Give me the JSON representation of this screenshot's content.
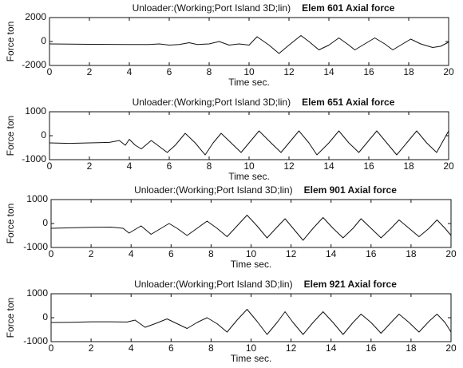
{
  "chart_data": [
    {
      "type": "line",
      "title": "Unloader:(Working;Port Island 3D;lin)",
      "subtitle": "Elem 601   Axial force",
      "xlabel": "Time  sec.",
      "ylabel": "Force ton",
      "xlim": [
        0,
        20
      ],
      "xticks": [
        0,
        2,
        4,
        6,
        8,
        10,
        12,
        14,
        16,
        18,
        20
      ],
      "ylim": [
        -2000,
        2000
      ],
      "yticks": [
        -2000,
        0,
        2000
      ],
      "grid": false,
      "x": [
        0,
        1,
        2,
        3,
        4,
        5,
        5.5,
        6,
        6.5,
        7,
        7.4,
        8,
        8.5,
        9,
        9.5,
        10,
        10.4,
        11,
        11.5,
        12,
        12.6,
        13,
        13.5,
        14,
        14.5,
        15,
        15.3,
        15.8,
        16.3,
        16.8,
        17.2,
        17.7,
        18.1,
        18.6,
        19.2,
        19.6,
        20
      ],
      "series": [
        {
          "color": "#111111",
          "values": [
            -200,
            -220,
            -230,
            -240,
            -250,
            -250,
            -200,
            -300,
            -250,
            -100,
            -250,
            -200,
            0,
            -300,
            -200,
            -300,
            400,
            -300,
            -1000,
            -300,
            500,
            0,
            -700,
            -300,
            300,
            -300,
            -700,
            -200,
            300,
            -200,
            -700,
            -200,
            200,
            -200,
            -500,
            -400,
            -50
          ]
        }
      ]
    },
    {
      "type": "line",
      "title": "Unloader:(Working;Port Island 3D;lin)",
      "subtitle": "Elem 651   Axial force",
      "xlabel": "Time  sec.",
      "ylabel": "Force ton",
      "xlim": [
        0,
        20
      ],
      "xticks": [
        0,
        2,
        4,
        6,
        8,
        10,
        12,
        14,
        16,
        18,
        20
      ],
      "ylim": [
        -1000,
        1000
      ],
      "yticks": [
        -1000,
        0,
        1000
      ],
      "grid": false,
      "x": [
        0,
        1,
        2,
        3,
        3.5,
        3.8,
        4,
        4.3,
        4.6,
        5.1,
        5.5,
        5.9,
        6.3,
        6.8,
        7.3,
        7.8,
        8.2,
        8.6,
        9.1,
        9.6,
        10,
        10.5,
        11.1,
        11.6,
        12,
        12.5,
        13,
        13.4,
        14,
        14.5,
        15,
        15.5,
        16,
        16.4,
        16.9,
        17.4,
        17.9,
        18.4,
        18.9,
        19.4,
        20
      ],
      "series": [
        {
          "color": "#111111",
          "values": [
            -300,
            -320,
            -300,
            -280,
            -200,
            -400,
            -150,
            -400,
            -550,
            -200,
            -450,
            -700,
            -400,
            100,
            -300,
            -800,
            -300,
            100,
            -300,
            -700,
            -300,
            200,
            -300,
            -700,
            -300,
            200,
            -300,
            -800,
            -300,
            200,
            -300,
            -700,
            -200,
            200,
            -300,
            -800,
            -300,
            200,
            -300,
            -700,
            200
          ]
        }
      ]
    },
    {
      "type": "line",
      "title": "Unloader:(Working;Port Island 3D;lin)",
      "subtitle": "Elem 901   Axial force",
      "xlabel": "Time  sec.",
      "ylabel": "Force ton",
      "xlim": [
        0,
        20
      ],
      "xticks": [
        0,
        2,
        4,
        6,
        8,
        10,
        12,
        14,
        16,
        18,
        20
      ],
      "ylim": [
        -1000,
        1000
      ],
      "yticks": [
        -1000,
        0,
        1000
      ],
      "grid": false,
      "x": [
        0,
        1,
        2,
        3,
        3.6,
        3.9,
        4.5,
        5,
        5.5,
        5.9,
        6.3,
        6.8,
        7.3,
        7.8,
        8.3,
        8.8,
        9.3,
        9.8,
        10.3,
        10.8,
        11.3,
        11.7,
        12.1,
        12.6,
        13.1,
        13.6,
        14.1,
        14.6,
        15.1,
        15.5,
        16,
        16.5,
        17,
        17.4,
        17.9,
        18.4,
        18.9,
        19.3,
        19.7,
        20
      ],
      "series": [
        {
          "color": "#111111",
          "values": [
            -200,
            -180,
            -160,
            -150,
            -200,
            -400,
            -100,
            -450,
            -200,
            0,
            -200,
            -500,
            -200,
            100,
            -200,
            -550,
            -100,
            350,
            -100,
            -600,
            -150,
            200,
            -200,
            -700,
            -200,
            250,
            -200,
            -600,
            -200,
            200,
            -200,
            -600,
            -200,
            150,
            -200,
            -550,
            -200,
            150,
            -200,
            -500
          ]
        }
      ]
    },
    {
      "type": "line",
      "title": "Unloader:(Working;Port Island 3D;lin)",
      "subtitle": "Elem 921   Axial force",
      "xlabel": "Time  sec.",
      "ylabel": "Force ton",
      "xlim": [
        0,
        20
      ],
      "xticks": [
        0,
        2,
        4,
        6,
        8,
        10,
        12,
        14,
        16,
        18,
        20
      ],
      "ylim": [
        -1000,
        1000
      ],
      "yticks": [
        -1000,
        0,
        1000
      ],
      "grid": false,
      "x": [
        0,
        1,
        2,
        3,
        3.8,
        4.2,
        4.7,
        5.2,
        5.8,
        6.3,
        6.8,
        7.3,
        7.8,
        8.3,
        8.8,
        9.3,
        9.8,
        10.3,
        10.8,
        11.3,
        11.7,
        12.1,
        12.6,
        13.1,
        13.6,
        14.1,
        14.6,
        15.1,
        15.5,
        16,
        16.5,
        17,
        17.4,
        17.9,
        18.4,
        18.9,
        19.3,
        19.7,
        20
      ],
      "series": [
        {
          "color": "#111111",
          "values": [
            -200,
            -190,
            -170,
            -170,
            -180,
            -100,
            -400,
            -250,
            -50,
            -250,
            -450,
            -200,
            0,
            -250,
            -600,
            -100,
            350,
            -150,
            -700,
            -200,
            250,
            -200,
            -700,
            -200,
            250,
            -200,
            -700,
            -200,
            150,
            -200,
            -650,
            -200,
            150,
            -200,
            -600,
            -150,
            150,
            -200,
            -600
          ]
        }
      ]
    }
  ]
}
